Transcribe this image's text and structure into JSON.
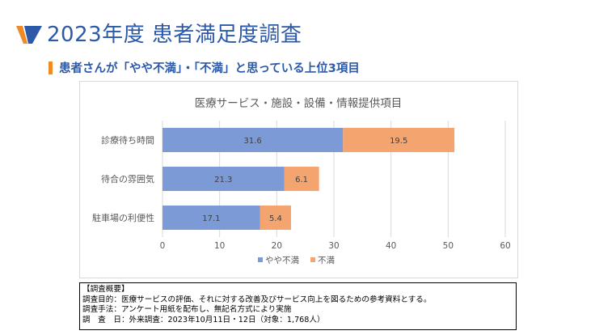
{
  "header": {
    "title": "2023年度 患者満足度調査",
    "subtitle": "患者さんが「やや不満」・「不満」と思っている上位3項目"
  },
  "colors": {
    "accent": "#f08a24",
    "title": "#2c59a8"
  },
  "chart_data": {
    "type": "bar",
    "orientation": "horizontal",
    "stacked": true,
    "title": "医療サービス・施設・設備・情報提供項目",
    "categories": [
      "診療待ち時間",
      "待合の雰囲気",
      "駐車場の利便性"
    ],
    "series": [
      {
        "name": "やや不満",
        "color": "#7b9ad6",
        "values": [
          31.6,
          21.3,
          17.1
        ]
      },
      {
        "name": "不満",
        "color": "#f4a46e",
        "values": [
          19.5,
          6.1,
          5.4
        ]
      }
    ],
    "xlim": [
      0,
      60
    ],
    "xticks": [
      0,
      10,
      20,
      30,
      40,
      50,
      60
    ],
    "grid": true,
    "legend": "bottom"
  },
  "survey": {
    "heading": "【調査概要】",
    "lines": [
      "調査目的：医療サービスの評価、それに対する改善及びサービス向上を図るための参考資料とする。",
      "調査手法：アンケート用紙を配布し、無記名方式により実施",
      "調　査　日：外来調査：2023年10月11日・12日（対象：1,768人）"
    ]
  }
}
